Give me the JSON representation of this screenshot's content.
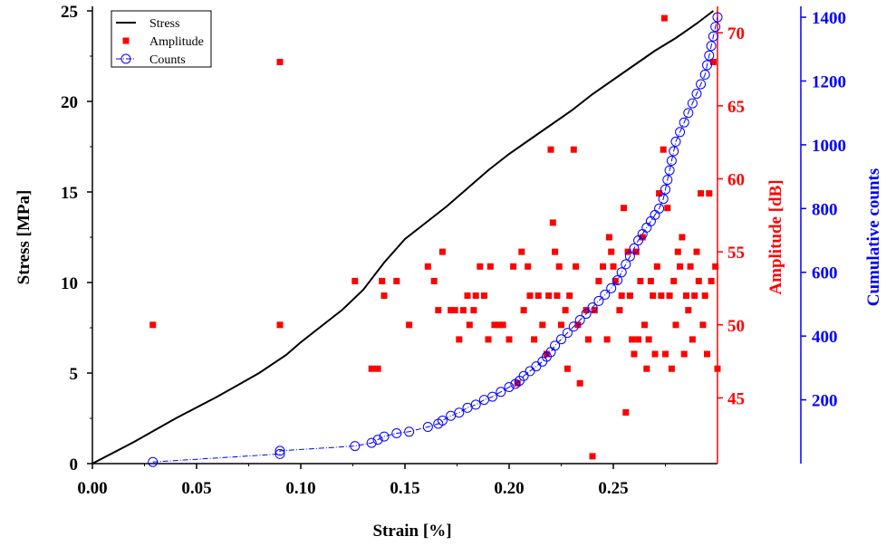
{
  "chart_data": {
    "type": "line+scatter",
    "xlabel": "Strain [%]",
    "ylabel_left": "Stress [MPa]",
    "ylabel_amp": "Amplitude [dB]",
    "ylabel_counts": "Cumulative counts",
    "xlim": [
      0,
      0.3
    ],
    "ylim_left": [
      0,
      25
    ],
    "ylim_amp": [
      40.5,
      71.5
    ],
    "ylim_counts": [
      0,
      1420
    ],
    "x_ticks": [
      "0.00",
      "0.05",
      "0.10",
      "0.15",
      "0.20",
      "0.25"
    ],
    "y_left_ticks": [
      "0",
      "5",
      "10",
      "15",
      "20",
      "25"
    ],
    "y_amp_ticks": [
      "45",
      "50",
      "55",
      "60",
      "65",
      "70"
    ],
    "y_counts_ticks": [
      "200",
      "400",
      "600",
      "800",
      "1000",
      "1200",
      "1400"
    ],
    "colors": {
      "stress": "#000000",
      "amplitude": "#ff0000",
      "counts": "#0000ff"
    },
    "legend": {
      "position": "top-left",
      "entries": [
        {
          "label": "Stress",
          "marker": "line",
          "color": "#000000"
        },
        {
          "label": "Amplitude",
          "marker": "square",
          "color": "#ff0000"
        },
        {
          "label": "Counts",
          "marker": "circle-dashdot",
          "color": "#0000ff"
        }
      ]
    },
    "series": [
      {
        "name": "Stress",
        "axis": "left",
        "style": "line",
        "points": [
          [
            0,
            0
          ],
          [
            0.02,
            1.2
          ],
          [
            0.04,
            2.5
          ],
          [
            0.06,
            3.7
          ],
          [
            0.08,
            5.0
          ],
          [
            0.093,
            6.0
          ],
          [
            0.1,
            6.7
          ],
          [
            0.11,
            7.6
          ],
          [
            0.12,
            8.5
          ],
          [
            0.13,
            9.6
          ],
          [
            0.14,
            11.1
          ],
          [
            0.15,
            12.4
          ],
          [
            0.16,
            13.3
          ],
          [
            0.17,
            14.2
          ],
          [
            0.18,
            15.2
          ],
          [
            0.19,
            16.2
          ],
          [
            0.2,
            17.1
          ],
          [
            0.21,
            17.9
          ],
          [
            0.22,
            18.7
          ],
          [
            0.23,
            19.5
          ],
          [
            0.24,
            20.4
          ],
          [
            0.25,
            21.2
          ],
          [
            0.26,
            22.0
          ],
          [
            0.27,
            22.8
          ],
          [
            0.28,
            23.5
          ],
          [
            0.29,
            24.3
          ],
          [
            0.298,
            25.0
          ]
        ]
      },
      {
        "name": "Amplitude",
        "axis": "amp",
        "style": "square",
        "points": [
          [
            0.029,
            50
          ],
          [
            0.09,
            68
          ],
          [
            0.09,
            50
          ],
          [
            0.126,
            53
          ],
          [
            0.134,
            47
          ],
          [
            0.137,
            47
          ],
          [
            0.139,
            53
          ],
          [
            0.14,
            52
          ],
          [
            0.146,
            53
          ],
          [
            0.152,
            50
          ],
          [
            0.161,
            54
          ],
          [
            0.164,
            53
          ],
          [
            0.166,
            51
          ],
          [
            0.168,
            55
          ],
          [
            0.172,
            51
          ],
          [
            0.174,
            51
          ],
          [
            0.176,
            49
          ],
          [
            0.178,
            51
          ],
          [
            0.18,
            52
          ],
          [
            0.181,
            50
          ],
          [
            0.183,
            51
          ],
          [
            0.184,
            52
          ],
          [
            0.186,
            54
          ],
          [
            0.188,
            52
          ],
          [
            0.19,
            49
          ],
          [
            0.191,
            54
          ],
          [
            0.193,
            50
          ],
          [
            0.195,
            50
          ],
          [
            0.197,
            50
          ],
          [
            0.2,
            49
          ],
          [
            0.202,
            54
          ],
          [
            0.204,
            46
          ],
          [
            0.206,
            55
          ],
          [
            0.207,
            51
          ],
          [
            0.209,
            54
          ],
          [
            0.21,
            52
          ],
          [
            0.212,
            49
          ],
          [
            0.214,
            52
          ],
          [
            0.216,
            50
          ],
          [
            0.218,
            48
          ],
          [
            0.219,
            52
          ],
          [
            0.22,
            62
          ],
          [
            0.221,
            57
          ],
          [
            0.222,
            55
          ],
          [
            0.223,
            52
          ],
          [
            0.224,
            54
          ],
          [
            0.225,
            50
          ],
          [
            0.227,
            51
          ],
          [
            0.228,
            47
          ],
          [
            0.229,
            52
          ],
          [
            0.231,
            62
          ],
          [
            0.232,
            54
          ],
          [
            0.233,
            50
          ],
          [
            0.234,
            46
          ],
          [
            0.237,
            51
          ],
          [
            0.238,
            49
          ],
          [
            0.24,
            41
          ],
          [
            0.241,
            51
          ],
          [
            0.243,
            53
          ],
          [
            0.245,
            54
          ],
          [
            0.247,
            49
          ],
          [
            0.248,
            56
          ],
          [
            0.249,
            55
          ],
          [
            0.25,
            54
          ],
          [
            0.251,
            53
          ],
          [
            0.253,
            51
          ],
          [
            0.254,
            52
          ],
          [
            0.255,
            58
          ],
          [
            0.256,
            44
          ],
          [
            0.257,
            55
          ],
          [
            0.258,
            52
          ],
          [
            0.259,
            49
          ],
          [
            0.26,
            48
          ],
          [
            0.261,
            55
          ],
          [
            0.262,
            49
          ],
          [
            0.263,
            53
          ],
          [
            0.264,
            56
          ],
          [
            0.265,
            50
          ],
          [
            0.266,
            47
          ],
          [
            0.267,
            49
          ],
          [
            0.268,
            53
          ],
          [
            0.269,
            52
          ],
          [
            0.27,
            48
          ],
          [
            0.271,
            54
          ],
          [
            0.272,
            59
          ],
          [
            0.273,
            52
          ],
          [
            0.274,
            62
          ],
          [
            0.2745,
            71
          ],
          [
            0.275,
            48
          ],
          [
            0.276,
            58
          ],
          [
            0.277,
            52
          ],
          [
            0.278,
            47
          ],
          [
            0.279,
            53
          ],
          [
            0.28,
            50
          ],
          [
            0.281,
            55
          ],
          [
            0.282,
            54
          ],
          [
            0.283,
            56
          ],
          [
            0.284,
            48
          ],
          [
            0.285,
            52
          ],
          [
            0.286,
            51
          ],
          [
            0.287,
            54
          ],
          [
            0.288,
            49
          ],
          [
            0.289,
            52
          ],
          [
            0.29,
            55
          ],
          [
            0.291,
            53
          ],
          [
            0.292,
            59
          ],
          [
            0.293,
            50
          ],
          [
            0.294,
            52
          ],
          [
            0.295,
            48
          ],
          [
            0.296,
            59
          ],
          [
            0.297,
            53
          ],
          [
            0.298,
            68
          ],
          [
            0.299,
            54
          ],
          [
            0.3,
            47
          ]
        ]
      },
      {
        "name": "Counts",
        "axis": "counts",
        "style": "circle-dashdot",
        "points": [
          [
            0.029,
            5
          ],
          [
            0.09,
            30
          ],
          [
            0.09,
            40
          ],
          [
            0.126,
            55
          ],
          [
            0.134,
            65
          ],
          [
            0.137,
            75
          ],
          [
            0.14,
            85
          ],
          [
            0.146,
            95
          ],
          [
            0.152,
            100
          ],
          [
            0.161,
            115
          ],
          [
            0.166,
            125
          ],
          [
            0.168,
            135
          ],
          [
            0.172,
            150
          ],
          [
            0.176,
            160
          ],
          [
            0.18,
            175
          ],
          [
            0.184,
            185
          ],
          [
            0.188,
            200
          ],
          [
            0.192,
            210
          ],
          [
            0.196,
            225
          ],
          [
            0.2,
            240
          ],
          [
            0.203,
            250
          ],
          [
            0.205,
            260
          ],
          [
            0.207,
            275
          ],
          [
            0.21,
            290
          ],
          [
            0.213,
            305
          ],
          [
            0.216,
            320
          ],
          [
            0.218,
            335
          ],
          [
            0.22,
            350
          ],
          [
            0.222,
            370
          ],
          [
            0.225,
            390
          ],
          [
            0.228,
            410
          ],
          [
            0.231,
            430
          ],
          [
            0.234,
            450
          ],
          [
            0.237,
            470
          ],
          [
            0.24,
            490
          ],
          [
            0.243,
            510
          ],
          [
            0.246,
            530
          ],
          [
            0.249,
            550
          ],
          [
            0.252,
            575
          ],
          [
            0.254,
            600
          ],
          [
            0.256,
            625
          ],
          [
            0.258,
            650
          ],
          [
            0.26,
            675
          ],
          [
            0.262,
            700
          ],
          [
            0.264,
            720
          ],
          [
            0.266,
            740
          ],
          [
            0.268,
            760
          ],
          [
            0.27,
            780
          ],
          [
            0.272,
            800
          ],
          [
            0.274,
            830
          ],
          [
            0.275,
            860
          ],
          [
            0.276,
            890
          ],
          [
            0.277,
            920
          ],
          [
            0.278,
            950
          ],
          [
            0.279,
            980
          ],
          [
            0.28,
            1010
          ],
          [
            0.282,
            1040
          ],
          [
            0.284,
            1070
          ],
          [
            0.286,
            1100
          ],
          [
            0.288,
            1130
          ],
          [
            0.29,
            1160
          ],
          [
            0.292,
            1190
          ],
          [
            0.294,
            1220
          ],
          [
            0.295,
            1250
          ],
          [
            0.296,
            1280
          ],
          [
            0.297,
            1310
          ],
          [
            0.298,
            1340
          ],
          [
            0.299,
            1370
          ],
          [
            0.3,
            1400
          ]
        ]
      }
    ]
  }
}
